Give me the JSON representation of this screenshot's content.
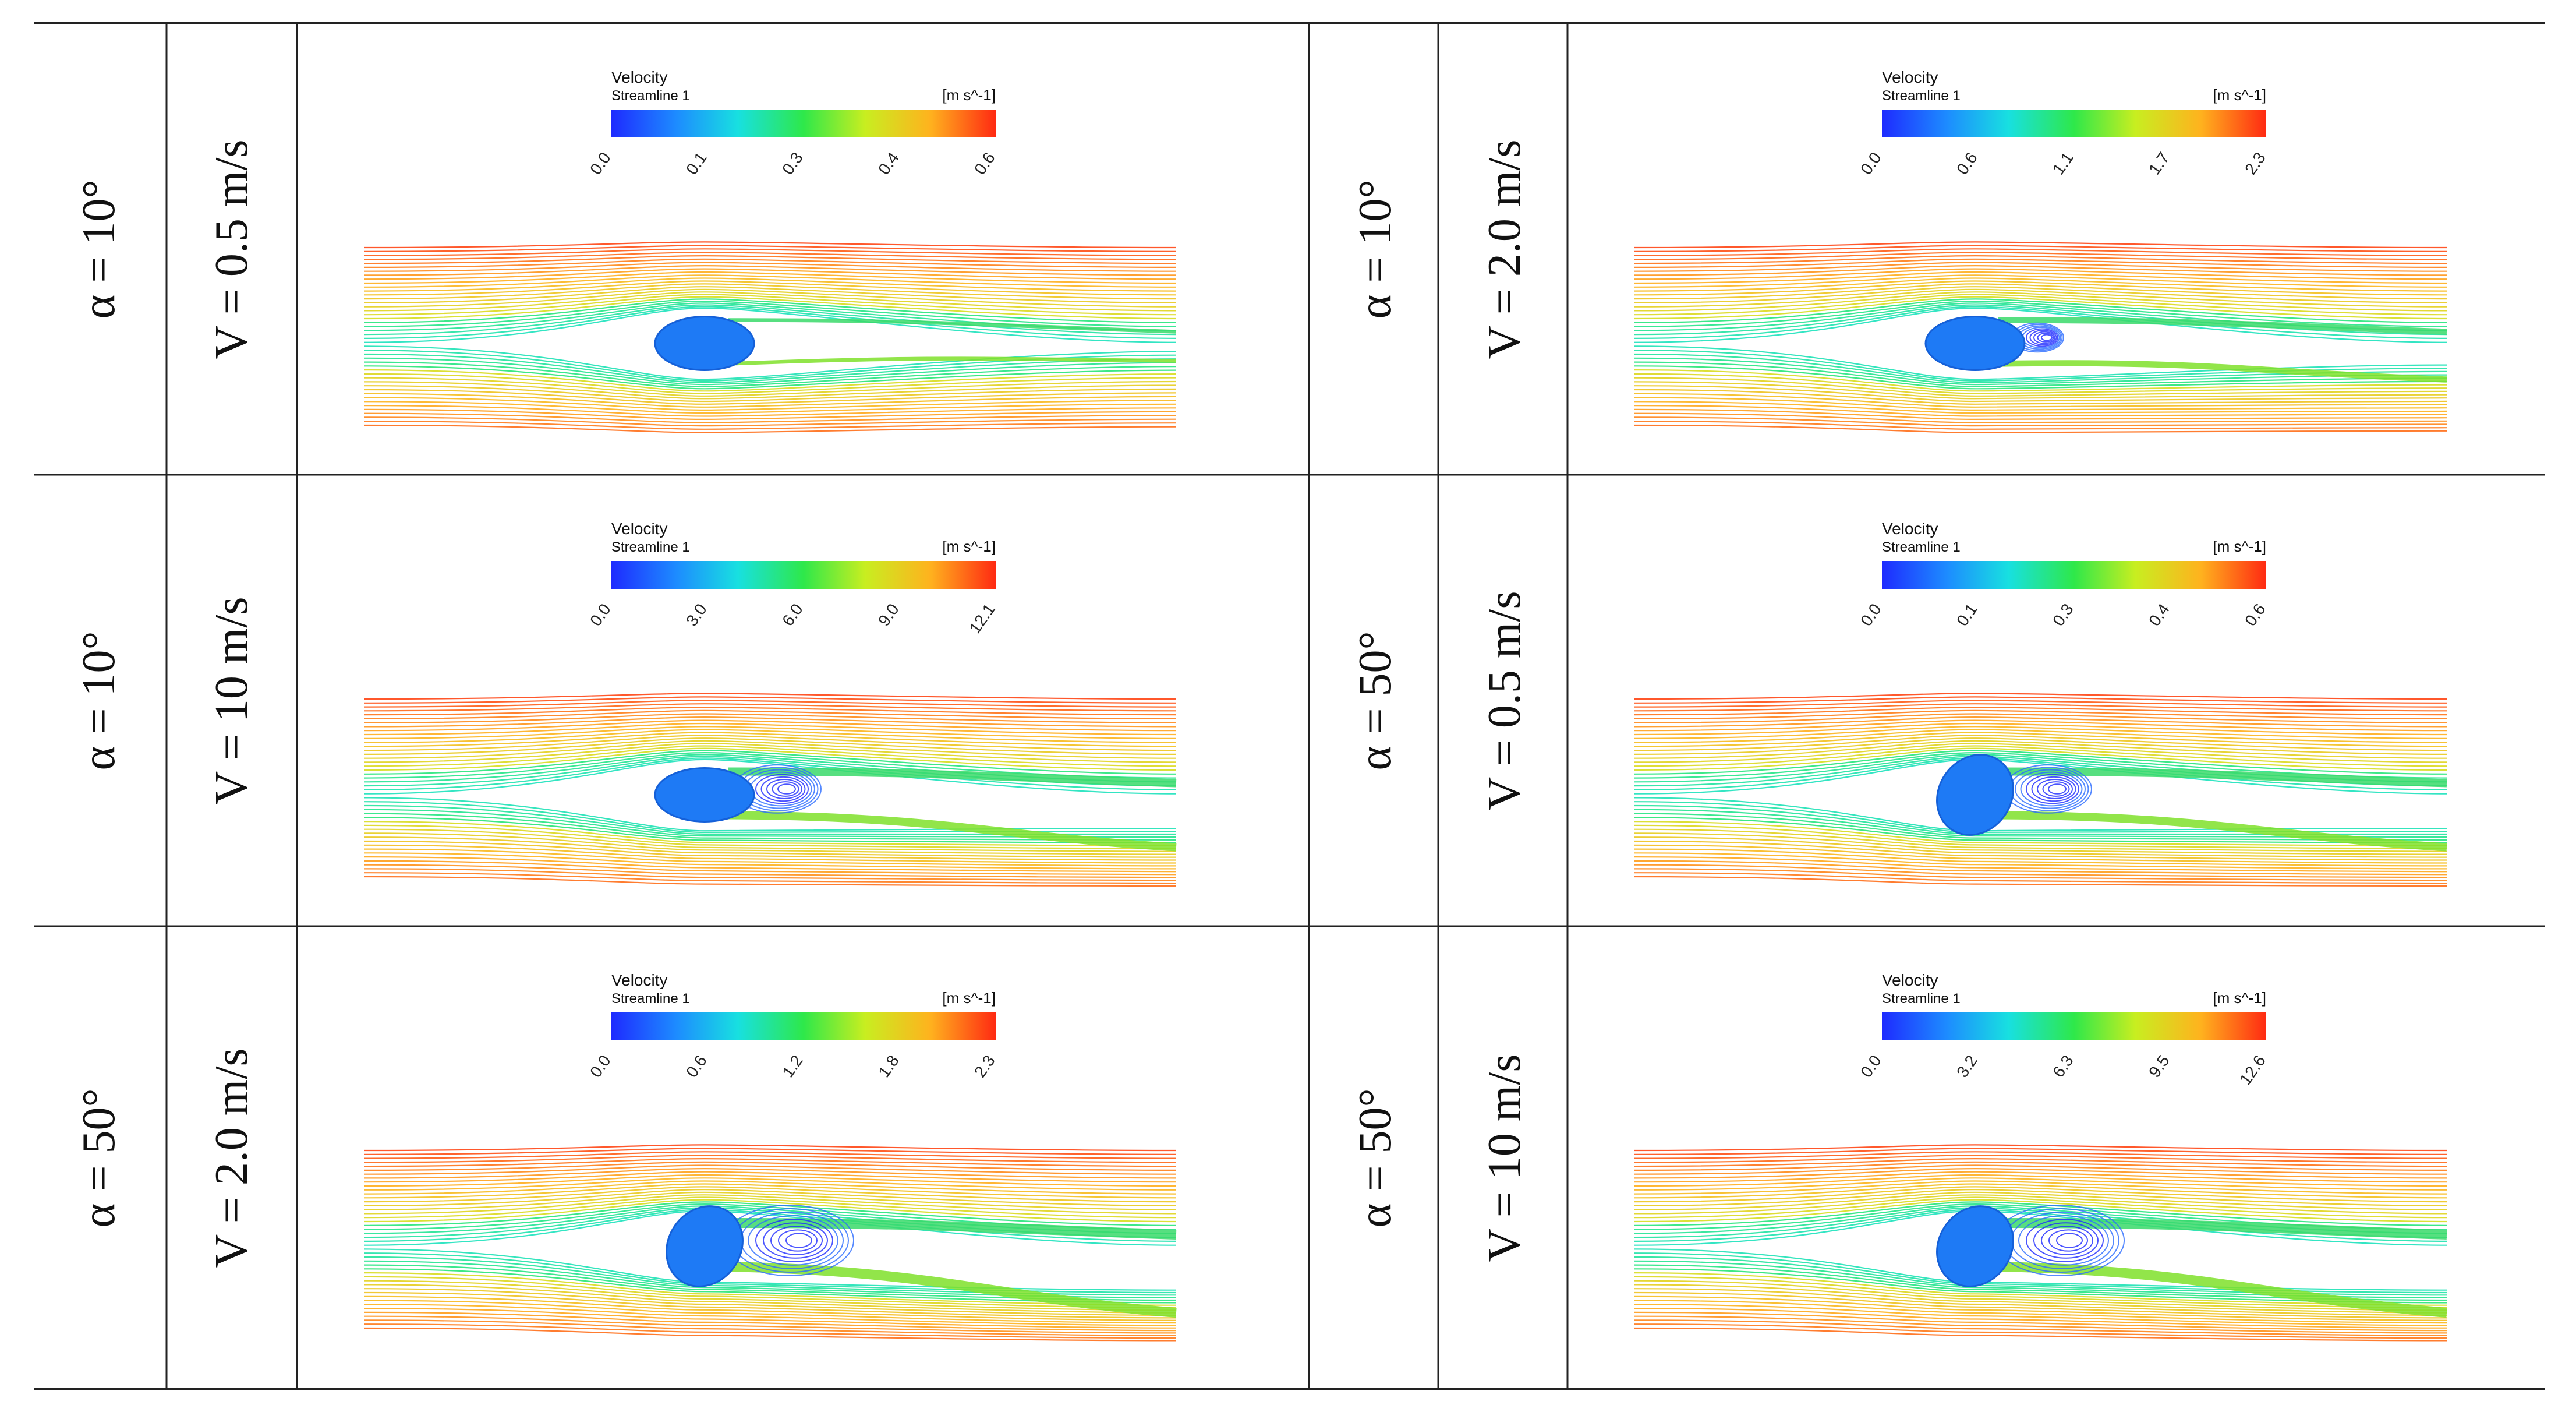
{
  "table": {
    "rows": [
      {
        "left": {
          "angle": "α = 10°",
          "speed": "V = 0.5 m/s",
          "legend": {
            "title": "Velocity",
            "subtitle": "Streamline 1",
            "unit": "[m s^-1]",
            "ticks": [
              "0.0",
              "0.1",
              "0.3",
              "0.4",
              "0.6"
            ]
          },
          "flow": {
            "vortex": "none",
            "orientation": "horizontal",
            "variant": 0
          }
        },
        "right": {
          "angle": "α = 10°",
          "speed": "V = 2.0 m/s",
          "legend": {
            "title": "Velocity",
            "subtitle": "Streamline 1",
            "unit": "[m s^-1]",
            "ticks": [
              "0.0",
              "0.6",
              "1.1",
              "1.7",
              "2.3"
            ]
          },
          "flow": {
            "vortex": "small",
            "orientation": "horizontal",
            "variant": 1
          }
        }
      },
      {
        "left": {
          "angle": "α = 10°",
          "speed": "V = 10 m/s",
          "legend": {
            "title": "Velocity",
            "subtitle": "Streamline 1",
            "unit": "[m s^-1]",
            "ticks": [
              "0.0",
              "3.0",
              "6.0",
              "9.0",
              "12.1"
            ]
          },
          "flow": {
            "vortex": "medium",
            "orientation": "horizontal",
            "variant": 2
          }
        },
        "right": {
          "angle": "α = 50°",
          "speed": "V = 0.5 m/s",
          "legend": {
            "title": "Velocity",
            "subtitle": "Streamline 1",
            "unit": "[m s^-1]",
            "ticks": [
              "0.0",
              "0.1",
              "0.3",
              "0.4",
              "0.6"
            ]
          },
          "flow": {
            "vortex": "medium",
            "orientation": "tilted",
            "variant": 3
          }
        }
      },
      {
        "left": {
          "angle": "α = 50°",
          "speed": "V = 2.0 m/s",
          "legend": {
            "title": "Velocity",
            "subtitle": "Streamline 1",
            "unit": "[m s^-1]",
            "ticks": [
              "0.0",
              "0.6",
              "1.2",
              "1.8",
              "2.3"
            ]
          },
          "flow": {
            "vortex": "large",
            "orientation": "tilted",
            "variant": 4
          }
        },
        "right": {
          "angle": "α = 50°",
          "speed": "V = 10 m/s",
          "legend": {
            "title": "Velocity",
            "subtitle": "Streamline 1",
            "unit": "[m s^-1]",
            "ticks": [
              "0.0",
              "3.2",
              "6.3",
              "9.5",
              "12.6"
            ]
          },
          "flow": {
            "vortex": "large",
            "orientation": "tilted",
            "variant": 5
          }
        }
      }
    ]
  },
  "colormap": [
    "#1e2bff",
    "#1d8cff",
    "#18e0e0",
    "#2ee84a",
    "#c8ee20",
    "#ffb21e",
    "#ff2a12"
  ]
}
